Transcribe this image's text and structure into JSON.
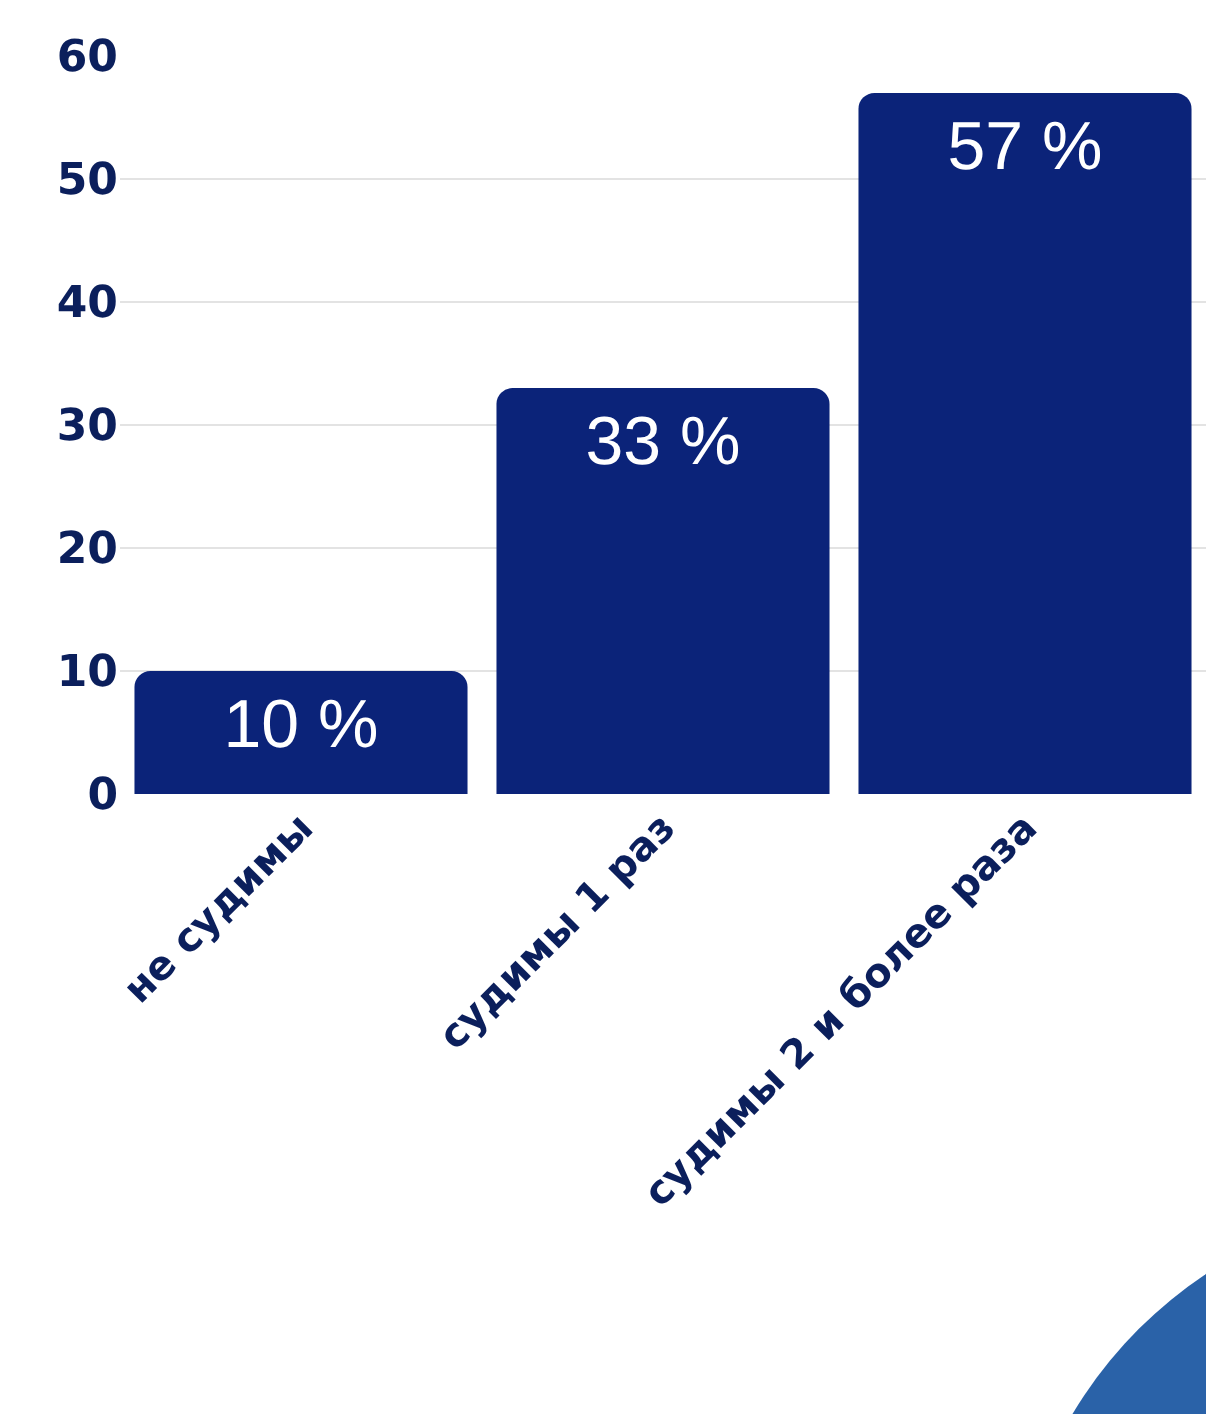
{
  "chart_data": {
    "type": "bar",
    "categories": [
      "не судимы",
      "судимы 1 раз",
      "судимы 2 и более раза"
    ],
    "values": [
      10,
      33,
      57
    ],
    "value_labels": [
      "10 %",
      "33 %",
      "57 %"
    ],
    "color": "#0b2379",
    "ylim": [
      0,
      60
    ],
    "yticks": [
      0,
      10,
      20,
      30,
      40,
      50,
      60
    ],
    "grid": "y"
  }
}
